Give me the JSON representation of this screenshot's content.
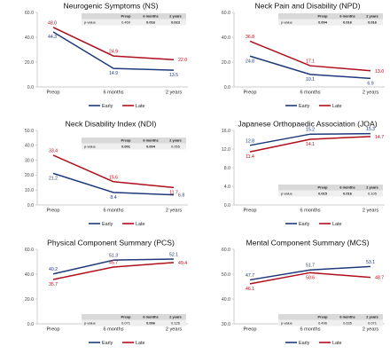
{
  "colors": {
    "early": "#1f3a7a",
    "late": "#b00f1c",
    "table_header": "#d9d9d9",
    "table_row": "#efefef",
    "axis": "#bbbbbb"
  },
  "chart_data": [
    {
      "type": "line",
      "title": "Neurogenic Symptoms (NS)",
      "categories": [
        "Preop",
        "6 months",
        "2 years"
      ],
      "ylim": [
        0,
        60
      ],
      "yticks": [
        "0.0",
        "20.0",
        "40.0",
        "60.0"
      ],
      "series": [
        {
          "name": "Early",
          "values": [
            44.3,
            14.9,
            13.5
          ]
        },
        {
          "name": "Late",
          "values": [
            48.0,
            24.9,
            22.0
          ]
        }
      ],
      "labels": {
        "Early": [
          "44.3",
          "14.9",
          "13.5"
        ],
        "Late": [
          "48.0",
          "24.9",
          "22.0"
        ]
      },
      "pvalue_table": {
        "headers": [
          "Preop",
          "6 months",
          "2 years"
        ],
        "row_label": "p-value",
        "values": [
          "0.469",
          "0.016",
          "0.023"
        ]
      },
      "legend": [
        "Early",
        "Late"
      ]
    },
    {
      "type": "line",
      "title": "Neck Pain and Disability (NPD)",
      "categories": [
        "Preop",
        "6 months",
        "2 years"
      ],
      "ylim": [
        0,
        60
      ],
      "yticks": [
        "0.0",
        "20.0",
        "40.0",
        "60.0"
      ],
      "series": [
        {
          "name": "Early",
          "values": [
            24.8,
            10.1,
            6.9
          ]
        },
        {
          "name": "Late",
          "values": [
            36.8,
            17.1,
            13.0
          ]
        }
      ],
      "labels": {
        "Early": [
          "24.8",
          "10.1",
          "6.9"
        ],
        "Late": [
          "36.8",
          "17.1",
          "13.0"
        ]
      },
      "pvalue_table": {
        "headers": [
          "Preop",
          "6 months",
          "2 years"
        ],
        "row_label": "p-value",
        "values": [
          "0.004",
          "0.016",
          "0.016"
        ]
      },
      "legend": [
        "Early",
        "Late"
      ]
    },
    {
      "type": "line",
      "title": "Neck Disability Index (NDI)",
      "categories": [
        "Preop",
        "6 months",
        "2 years"
      ],
      "ylim": [
        0,
        50
      ],
      "yticks": [
        "0.0",
        "10.0",
        "20.0",
        "30.0",
        "40.0",
        "50.0"
      ],
      "series": [
        {
          "name": "Early",
          "values": [
            21.2,
            8.4,
            6.8
          ]
        },
        {
          "name": "Late",
          "values": [
            33.4,
            15.6,
            11.7
          ]
        }
      ],
      "labels": {
        "Early": [
          "21.2",
          "8.4",
          "6.8"
        ],
        "Late": [
          "33.4",
          "15.6",
          "11.7"
        ]
      },
      "pvalue_table": {
        "headers": [
          "Preop",
          "6 months",
          "2 years"
        ],
        "row_label": "p-value",
        "values": [
          "0.001",
          "0.004",
          "0.055"
        ]
      },
      "legend": [
        "Early",
        "Late"
      ]
    },
    {
      "type": "line",
      "title": "Japanese Orthopaedic Association (JOA)",
      "categories": [
        "Preop",
        "6 months",
        "2 years"
      ],
      "ylim": [
        0,
        16
      ],
      "yticks": [
        "0.0",
        "4.0",
        "8.0",
        "12.0",
        "16.0"
      ],
      "series": [
        {
          "name": "Early",
          "values": [
            12.8,
            15.2,
            15.3
          ]
        },
        {
          "name": "Late",
          "values": [
            11.4,
            14.1,
            14.7
          ]
        }
      ],
      "labels": {
        "Early": [
          "12.8",
          "15.2",
          "15.3"
        ],
        "Late": [
          "11.4",
          "14.1",
          "14.7"
        ]
      },
      "pvalue_table": {
        "headers": [
          "Preop",
          "6 months",
          "2 years"
        ],
        "row_label": "p-value",
        "values": [
          "0.015",
          "0.016",
          "0.105"
        ]
      },
      "legend": [
        "Early",
        "Late"
      ]
    },
    {
      "type": "line",
      "title": "Physical Component Summary (PCS)",
      "categories": [
        "Preop",
        "6 months",
        "2 years"
      ],
      "ylim": [
        0,
        60
      ],
      "yticks": [
        "0.0",
        "20.0",
        "40.0",
        "60.0"
      ],
      "series": [
        {
          "name": "Early",
          "values": [
            40.2,
            51.3,
            52.1
          ]
        },
        {
          "name": "Late",
          "values": [
            35.7,
            45.7,
            49.4
          ]
        }
      ],
      "labels": {
        "Early": [
          "40.2",
          "51.3",
          "52.1"
        ],
        "Late": [
          "35.7",
          "45.7",
          "49.4"
        ]
      },
      "pvalue_table": {
        "headers": [
          "Preop",
          "6 months",
          "2 years"
        ],
        "row_label": "p-value",
        "values": [
          "0.071",
          "0.006",
          "0.126"
        ]
      },
      "legend": [
        "Early",
        "Late"
      ]
    },
    {
      "type": "line",
      "title": "Mental Component Summary (MCS)",
      "categories": [
        "Preop",
        "6 months",
        "2 years"
      ],
      "ylim": [
        30,
        60
      ],
      "yticks": [
        "30.0",
        "40.0",
        "50.0",
        "60.0"
      ],
      "series": [
        {
          "name": "Early",
          "values": [
            47.7,
            51.7,
            53.1
          ]
        },
        {
          "name": "Late",
          "values": [
            46.1,
            50.6,
            48.7
          ]
        }
      ],
      "labels": {
        "Early": [
          "47.7",
          "51.7",
          "53.1"
        ],
        "Late": [
          "46.1",
          "50.6",
          "48.7"
        ]
      },
      "pvalue_table": {
        "headers": [
          "Preop",
          "6 months",
          "2 years"
        ],
        "row_label": "p-value",
        "values": [
          "0.496",
          "0.635",
          "0.071"
        ]
      },
      "legend": [
        "Early",
        "Late"
      ]
    }
  ]
}
